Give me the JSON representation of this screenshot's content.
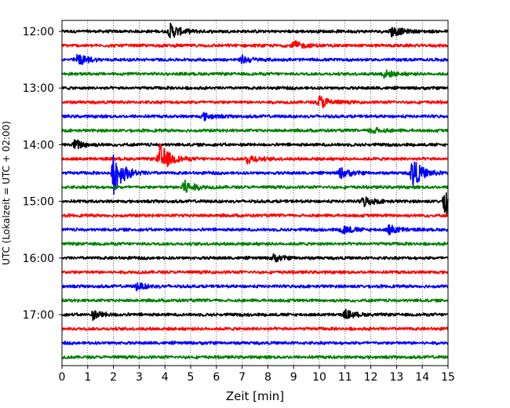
{
  "chart_data": {
    "type": "line",
    "title": "",
    "xlabel": "Zeit  [min]",
    "ylabel": "UTC (Lokalzeit = UTC + 02:00)",
    "xlim": [
      0,
      15
    ],
    "x_ticks": [
      "0",
      "1",
      "2",
      "3",
      "4",
      "5",
      "6",
      "7",
      "8",
      "9",
      "10",
      "11",
      "12",
      "13",
      "14",
      "15"
    ],
    "y_ticks": [
      "12:00",
      "13:00",
      "14:00",
      "15:00",
      "16:00",
      "17:00"
    ],
    "grid": {
      "vertical_dotted": true,
      "horizontal": false
    },
    "row_interval_minutes": 15,
    "row_colors": [
      "#000000",
      "#ff0000",
      "#0000ff",
      "#008000"
    ],
    "rows": [
      {
        "start": "12:00",
        "color": "#000000",
        "events": [
          {
            "t": 4.2,
            "amp": 0.45
          },
          {
            "t": 12.8,
            "amp": 0.3
          }
        ]
      },
      {
        "start": "12:15",
        "color": "#ff0000",
        "events": [
          {
            "t": 9.0,
            "amp": 0.25
          }
        ]
      },
      {
        "start": "12:30",
        "color": "#0000ff",
        "events": [
          {
            "t": 0.6,
            "amp": 0.35
          },
          {
            "t": 7.0,
            "amp": 0.22
          }
        ]
      },
      {
        "start": "12:45",
        "color": "#008000",
        "events": [
          {
            "t": 12.5,
            "amp": 0.22
          }
        ]
      },
      {
        "start": "13:00",
        "color": "#000000",
        "events": []
      },
      {
        "start": "13:15",
        "color": "#ff0000",
        "events": [
          {
            "t": 10.0,
            "amp": 0.4
          }
        ]
      },
      {
        "start": "13:30",
        "color": "#0000ff",
        "events": [
          {
            "t": 5.5,
            "amp": 0.2
          }
        ]
      },
      {
        "start": "13:45",
        "color": "#008000",
        "events": [
          {
            "t": 12.0,
            "amp": 0.2
          }
        ]
      },
      {
        "start": "14:00",
        "color": "#000000",
        "events": [
          {
            "t": 0.5,
            "amp": 0.3
          }
        ]
      },
      {
        "start": "14:15",
        "color": "#ff0000",
        "events": [
          {
            "t": 3.8,
            "amp": 0.9
          },
          {
            "t": 7.2,
            "amp": 0.28
          }
        ]
      },
      {
        "start": "14:30",
        "color": "#0000ff",
        "events": [
          {
            "t": 2.0,
            "amp": 1.2
          },
          {
            "t": 10.8,
            "amp": 0.3
          },
          {
            "t": 13.6,
            "amp": 0.9
          }
        ]
      },
      {
        "start": "14:45",
        "color": "#008000",
        "events": [
          {
            "t": 4.7,
            "amp": 0.45
          }
        ]
      },
      {
        "start": "15:00",
        "color": "#000000",
        "events": [
          {
            "t": 11.7,
            "amp": 0.3
          },
          {
            "t": 14.9,
            "amp": 1.3
          }
        ]
      },
      {
        "start": "15:15",
        "color": "#ff0000",
        "events": []
      },
      {
        "start": "15:30",
        "color": "#0000ff",
        "events": [
          {
            "t": 10.9,
            "amp": 0.28
          },
          {
            "t": 12.7,
            "amp": 0.28
          }
        ]
      },
      {
        "start": "15:45",
        "color": "#008000",
        "events": []
      },
      {
        "start": "16:00",
        "color": "#000000",
        "events": [
          {
            "t": 8.2,
            "amp": 0.2
          }
        ]
      },
      {
        "start": "16:15",
        "color": "#ff0000",
        "events": []
      },
      {
        "start": "16:30",
        "color": "#0000ff",
        "events": [
          {
            "t": 2.9,
            "amp": 0.2
          }
        ]
      },
      {
        "start": "16:45",
        "color": "#008000",
        "events": []
      },
      {
        "start": "17:00",
        "color": "#000000",
        "events": [
          {
            "t": 1.2,
            "amp": 0.25
          },
          {
            "t": 11.0,
            "amp": 0.25
          }
        ]
      },
      {
        "start": "17:15",
        "color": "#ff0000",
        "events": []
      },
      {
        "start": "17:30",
        "color": "#0000ff",
        "events": []
      },
      {
        "start": "17:45",
        "color": "#008000",
        "events": []
      }
    ]
  }
}
